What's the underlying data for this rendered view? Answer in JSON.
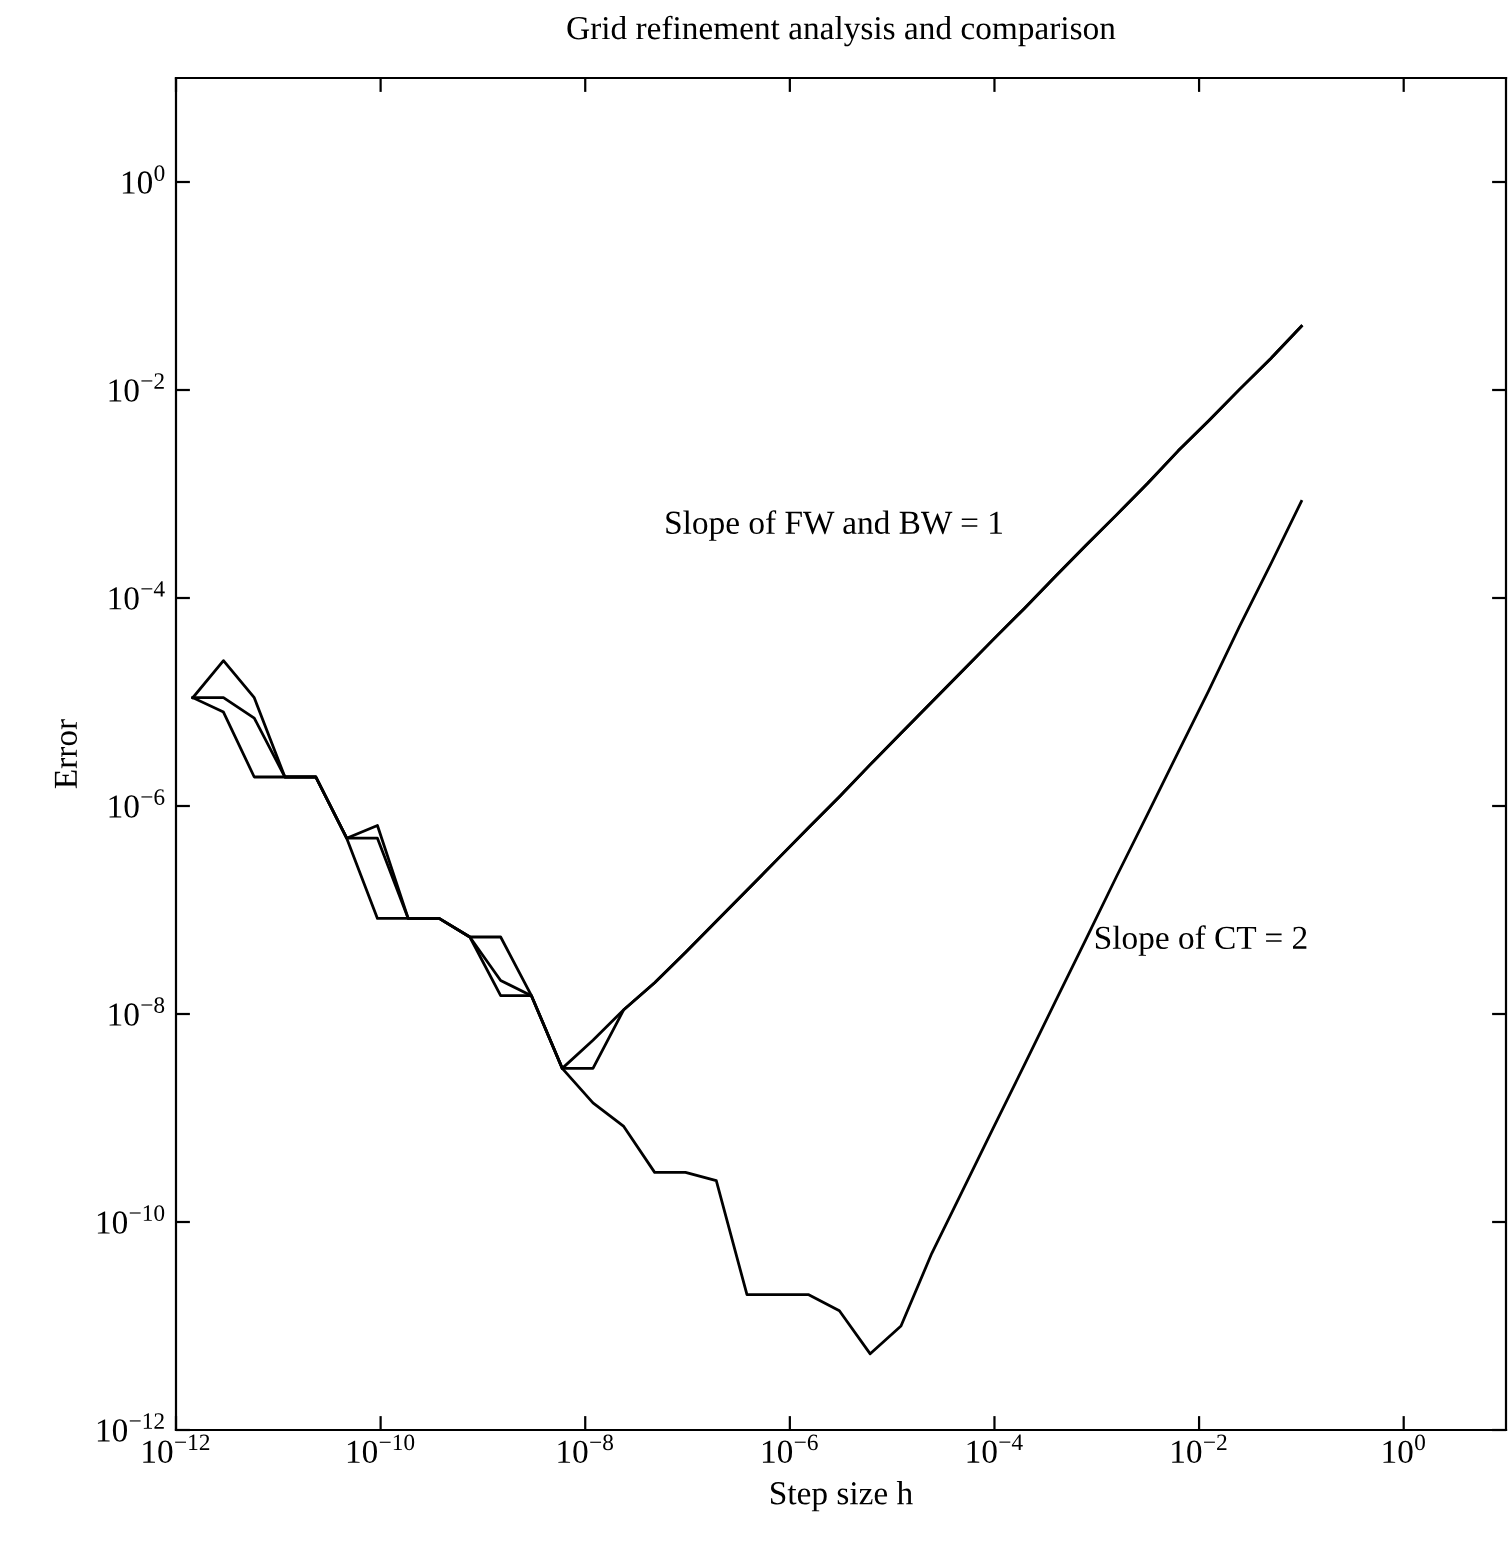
{
  "chart_data": {
    "type": "line",
    "title": "Grid refinement analysis and comparison",
    "xlabel": "Step size h",
    "ylabel": "Error",
    "log": "xy",
    "grid": false,
    "legend": false,
    "marker": "none",
    "line_style": "solid",
    "x": [
      1.46e-12,
      2.91e-12,
      5.82e-12,
      1.16e-11,
      2.33e-11,
      4.66e-11,
      9.31e-11,
      1.86e-10,
      3.73e-10,
      7.45e-10,
      1.49e-09,
      2.98e-09,
      5.96e-09,
      1.19e-08,
      2.38e-08,
      4.77e-08,
      9.54e-08,
      1.91e-07,
      3.81e-07,
      7.63e-07,
      1.53e-06,
      3.05e-06,
      6.1e-06,
      1.22e-05,
      2.44e-05,
      4.88e-05,
      9.77e-05,
      0.000195,
      0.000391,
      0.000781,
      0.00156,
      0.00313,
      0.00625,
      0.0125,
      0.025,
      0.05,
      0.1
    ],
    "series": [
      {
        "color": "#000000",
        "values": [
          1.1e-05,
          2.5e-05,
          1.1e-05,
          1.9e-06,
          1.9e-06,
          4.9e-07,
          6.5e-07,
          8.3e-08,
          8.3e-08,
          5.5e-08,
          5.5e-08,
          1.5e-08,
          3e-09,
          3e-09,
          1.1e-08,
          2e-08,
          3.9e-08,
          7.8e-08,
          1.55e-07,
          3.1e-07,
          6.2e-07,
          1.23e-06,
          2.5e-06,
          5e-06,
          1e-05,
          2e-05,
          4e-05,
          7.9e-05,
          0.00016,
          0.00032,
          0.00063,
          0.00126,
          0.0026,
          0.0051,
          0.0102,
          0.02,
          0.041
        ]
      },
      {
        "color": "#000000",
        "values": [
          1.1e-05,
          1.1e-05,
          7e-06,
          1.9e-06,
          1.9e-06,
          4.9e-07,
          4.9e-07,
          8.3e-08,
          8.3e-08,
          5.5e-08,
          2.1e-08,
          1.5e-08,
          3e-09,
          5.6e-09,
          1.1e-08,
          2e-08,
          3.9e-08,
          7.8e-08,
          1.55e-07,
          3.1e-07,
          6.2e-07,
          1.23e-06,
          2.5e-06,
          5e-06,
          1e-05,
          2e-05,
          4e-05,
          7.9e-05,
          0.00016,
          0.00032,
          0.00063,
          0.00126,
          0.0026,
          0.0051,
          0.0102,
          0.02,
          0.041
        ]
      },
      {
        "color": "#000000",
        "values": [
          1.1e-05,
          8e-06,
          1.9e-06,
          1.9e-06,
          1.9e-06,
          4.9e-07,
          8.3e-08,
          8.3e-08,
          8.3e-08,
          5.5e-08,
          1.5e-08,
          1.5e-08,
          3e-09,
          1.4e-09,
          8.3e-10,
          3e-10,
          3e-10,
          2.5e-10,
          2e-11,
          2e-11,
          2e-11,
          1.4e-11,
          5.4e-12,
          1e-11,
          5e-11,
          2e-10,
          8.1e-10,
          3.2e-09,
          1.3e-08,
          5.2e-08,
          2.1e-07,
          8.3e-07,
          3.3e-06,
          1.3e-05,
          5.4e-05,
          0.00021,
          0.00085
        ]
      }
    ],
    "xlim": [
      1e-12,
      10
    ],
    "ylim": [
      1e-12,
      10
    ],
    "xticks": [
      {
        "value": 1e-12,
        "label": "10$^{−12}$"
      },
      {
        "value": 1e-10,
        "label": "10$^{−10}$"
      },
      {
        "value": 1e-08,
        "label": "10$^{−8}$"
      },
      {
        "value": 1e-06,
        "label": "10$^{−6}$"
      },
      {
        "value": 0.0001,
        "label": "10$^{−4}$"
      },
      {
        "value": 0.01,
        "label": "10$^{−2}$"
      },
      {
        "value": 1,
        "label": "10$^{0}$"
      }
    ],
    "yticks": [
      {
        "value": 1e-12,
        "label": "10$^{−12}$"
      },
      {
        "value": 1e-10,
        "label": "10$^{−10}$"
      },
      {
        "value": 1e-08,
        "label": "10$^{−8}$"
      },
      {
        "value": 1e-06,
        "label": "10$^{−6}$"
      },
      {
        "value": 0.0001,
        "label": "10$^{−4}$"
      },
      {
        "value": 0.01,
        "label": "10$^{−2}$"
      },
      {
        "value": 1,
        "label": "10$^{0}$"
      }
    ],
    "annotations": [
      "Slope of FW and BW = 1",
      "Slope of CT = 2"
    ]
  }
}
